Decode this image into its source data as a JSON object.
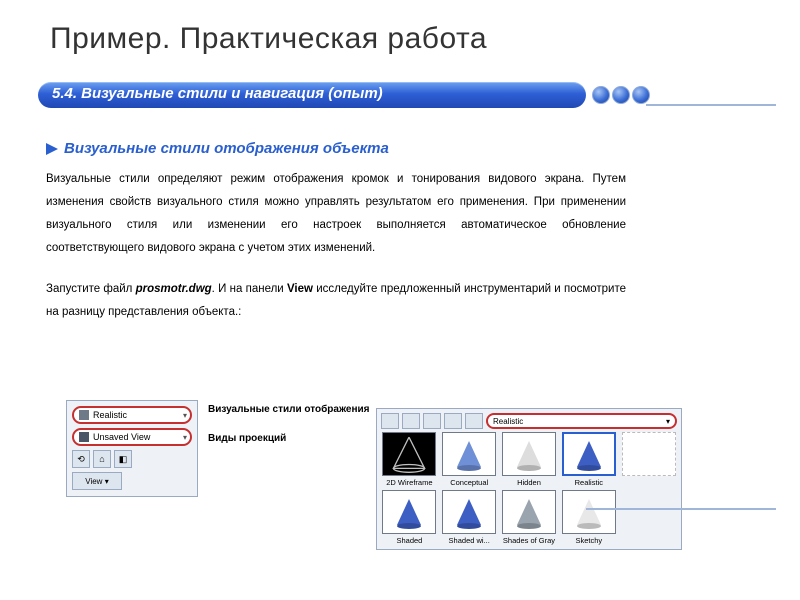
{
  "title": "Пример. Практическая работа",
  "pill_header": "5.4. Визуальные стили и навигация (опыт)",
  "section_heading": "Визуальные стили отображения объекта",
  "paragraph1": "Визуальные стили определяют режим отображения кромок и тонирования видового экрана. Путем изменения свойств визуального стиля можно управлять результатом его применения. При применении визуального стиля или изменении его настроек выполняется автоматическое обновление соответствующего видового экрана с учетом этих изменений.",
  "paragraph2_pre": "Запустите файл ",
  "paragraph2_file": "prosmotr.dwg",
  "paragraph2_mid": ". И на панели ",
  "paragraph2_bold": "View",
  "paragraph2_post": " исследуйте предложенный инструментарий и посмотрите на разницу представления объекта.:",
  "left_panel": {
    "combo1": "Realistic",
    "combo2": "Unsaved View",
    "view_btn": "View",
    "label1": "Визуальные стили отображения",
    "label2": "Виды проекций"
  },
  "gallery": {
    "combo": "Realistic",
    "styles": [
      {
        "name": "2D Wireframe",
        "bg": "#000000",
        "cone": "#c0c0c0",
        "wire": true
      },
      {
        "name": "Conceptual",
        "bg": "#ffffff",
        "cone": "#6f8fd6",
        "wire": false
      },
      {
        "name": "Hidden",
        "bg": "#ffffff",
        "cone": "#dddddd",
        "wire": false
      },
      {
        "name": "Realistic",
        "bg": "#ffffff",
        "cone": "#3d5fc4",
        "wire": false,
        "selected": true
      },
      {
        "name": "",
        "bg": "#ffffff",
        "cone": "#ffffff",
        "wire": false,
        "blank": true
      },
      {
        "name": "Shaded",
        "bg": "#ffffff",
        "cone": "#3d5fc4",
        "wire": false
      },
      {
        "name": "Shaded wi...",
        "bg": "#ffffff",
        "cone": "#3d5fc4",
        "wire": false
      },
      {
        "name": "Shades of Gray",
        "bg": "#ffffff",
        "cone": "#9aa4af",
        "wire": false
      },
      {
        "name": "Sketchy",
        "bg": "#ffffff",
        "cone": "#e8e8e8",
        "wire": false
      }
    ]
  },
  "colors": {
    "accent": "#2a5fcf",
    "pill_top": "#6da2f0",
    "pill_bot": "#1f49b4",
    "rule": "#9fb6d9",
    "highlight_border": "#c62f2f"
  }
}
